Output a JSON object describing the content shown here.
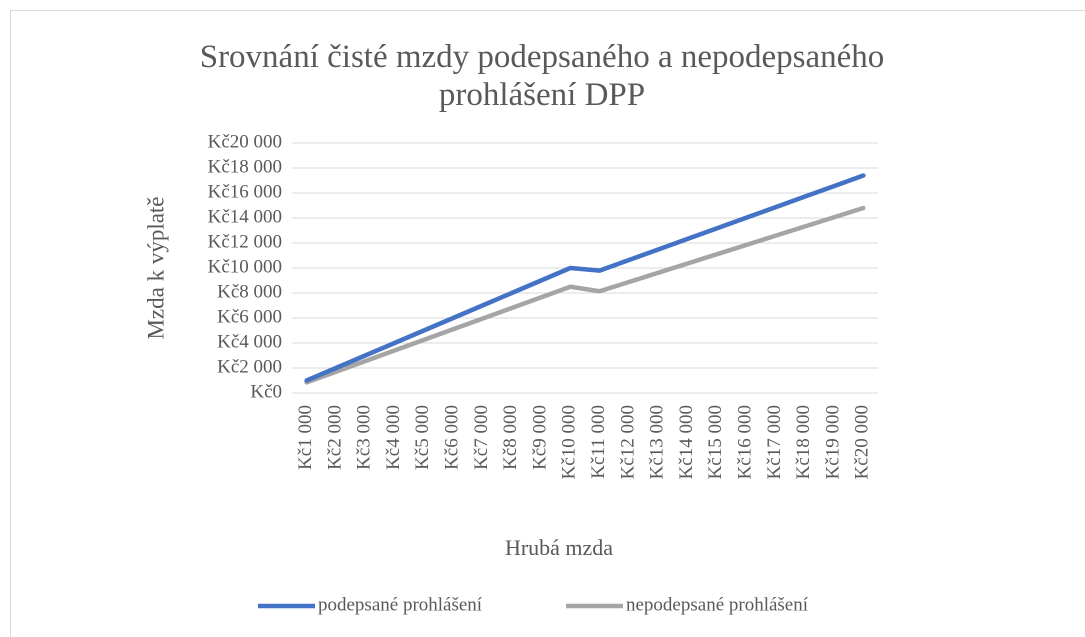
{
  "chart_data": {
    "type": "line",
    "title": "Srovnání čisté mzdy podepsaného a nepodepsaného prohlášení DPP",
    "x_label": "Hrubá mzda",
    "y_label": "Mzda k výplatě",
    "categories": [
      "Kč1 000",
      "Kč2 000",
      "Kč3 000",
      "Kč4 000",
      "Kč5 000",
      "Kč6 000",
      "Kč7 000",
      "Kč8 000",
      "Kč9 000",
      "Kč10 000",
      "Kč11 000",
      "Kč12 000",
      "Kč13 000",
      "Kč14 000",
      "Kč15 000",
      "Kč16 000",
      "Kč17 000",
      "Kč18 000",
      "Kč19 000",
      "Kč20 000"
    ],
    "series": [
      {
        "name": "podepsané prohlášení",
        "color": "#4472c4",
        "values": [
          1000,
          2000,
          3000,
          4000,
          5000,
          6000,
          7000,
          8000,
          9000,
          10000,
          9790,
          10640,
          11480,
          12330,
          13170,
          14020,
          14860,
          15710,
          16550,
          17400
        ]
      },
      {
        "name": "nepodepsané prohlášení",
        "color": "#a5a5a5",
        "values": [
          850,
          1700,
          2550,
          3400,
          4250,
          5100,
          5950,
          6800,
          7650,
          8500,
          8140,
          8880,
          9620,
          10360,
          11100,
          11840,
          12580,
          13320,
          14060,
          14800
        ]
      }
    ],
    "ylim": [
      0,
      20000
    ],
    "yticks": [
      {
        "value": 0,
        "label": "Kč0"
      },
      {
        "value": 2000,
        "label": "Kč2 000"
      },
      {
        "value": 4000,
        "label": "Kč4 000"
      },
      {
        "value": 6000,
        "label": "Kč6 000"
      },
      {
        "value": 8000,
        "label": "Kč8 000"
      },
      {
        "value": 10000,
        "label": "Kč10 000"
      },
      {
        "value": 12000,
        "label": "Kč12 000"
      },
      {
        "value": 14000,
        "label": "Kč14 000"
      },
      {
        "value": 16000,
        "label": "Kč16 000"
      },
      {
        "value": 18000,
        "label": "Kč18 000"
      },
      {
        "value": 20000,
        "label": "Kč20 000"
      }
    ],
    "grid": true,
    "legend": "bottom"
  }
}
